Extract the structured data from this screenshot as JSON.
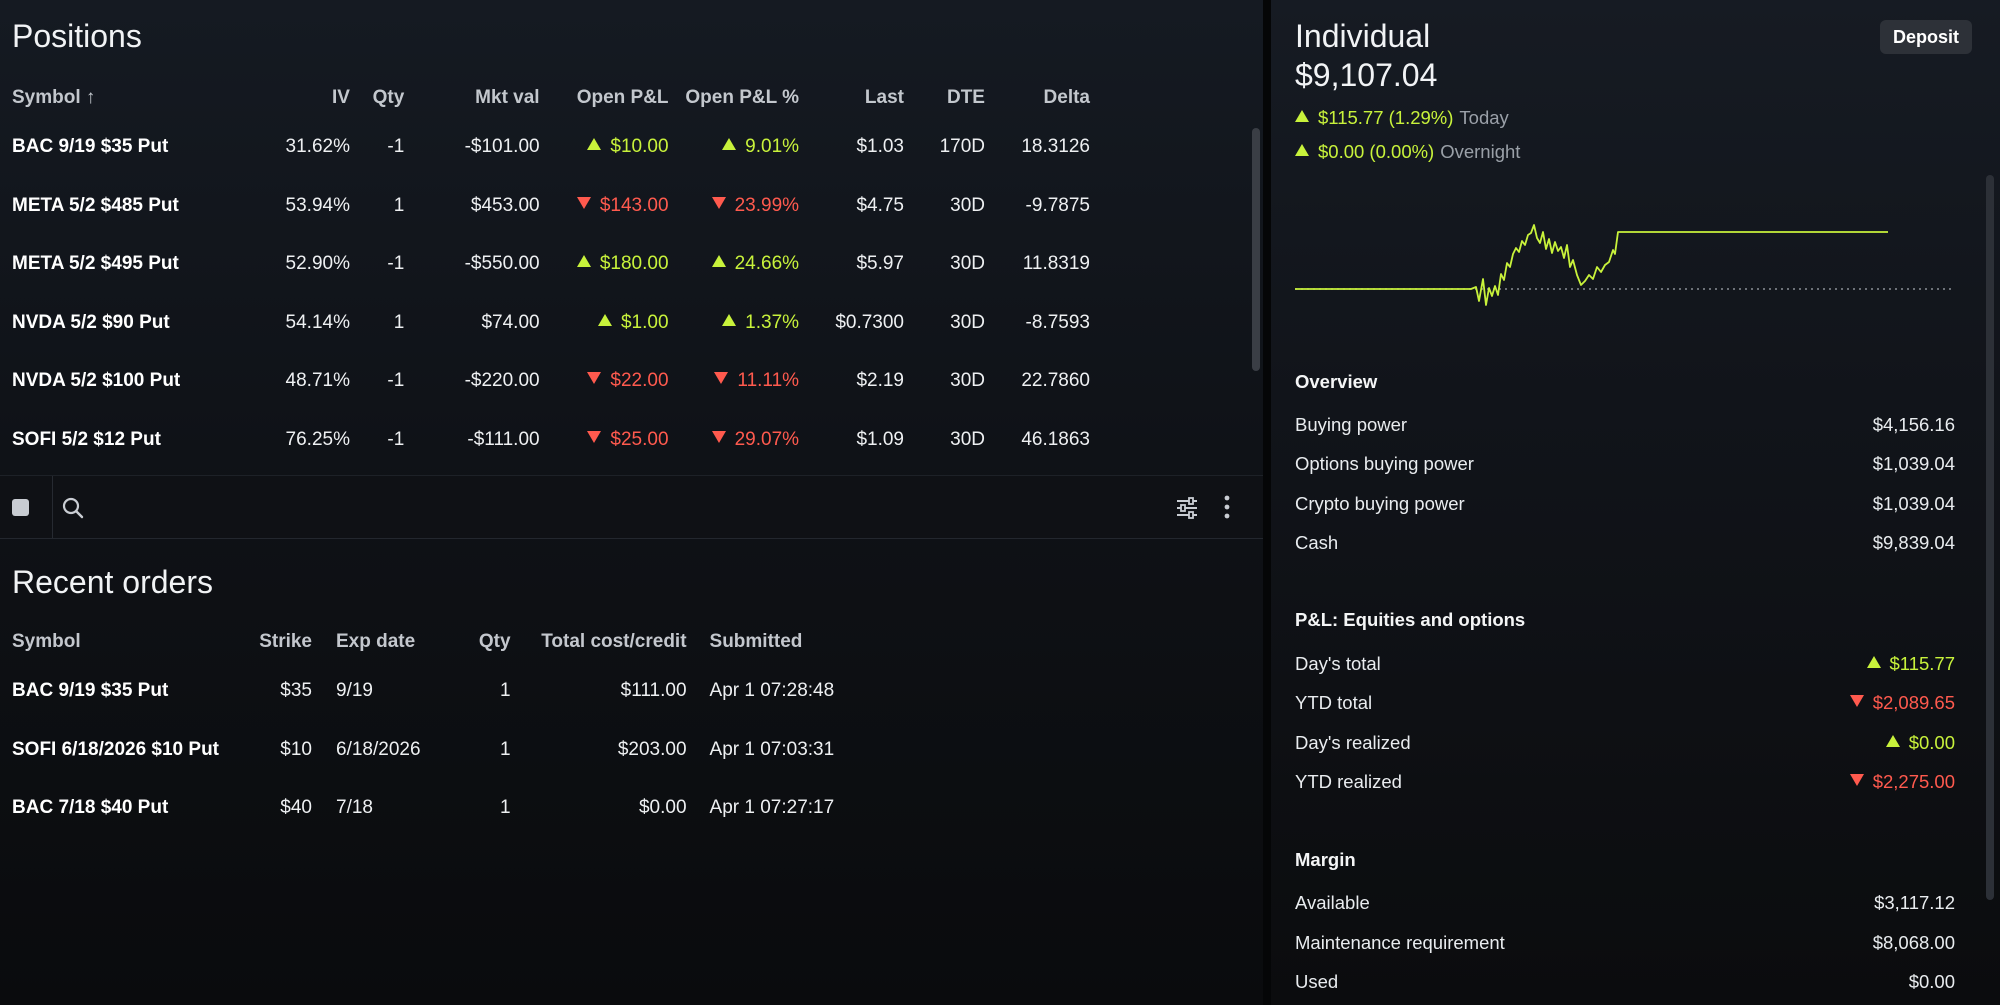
{
  "positions": {
    "title": "Positions",
    "columns": [
      "Symbol ↑",
      "IV",
      "Qty",
      "Mkt val",
      "Open P&L",
      "Open P&L %",
      "Last",
      "DTE",
      "Delta"
    ],
    "rows": [
      {
        "symbol": "BAC 9/19 $35 Put",
        "iv": "31.62%",
        "qty": "-1",
        "mkt": "-$101.00",
        "pnl": "$10.00",
        "pnl_pct": "9.01%",
        "dir": "up",
        "last": "$1.03",
        "dte": "170D",
        "delta": "18.3126"
      },
      {
        "symbol": "META 5/2 $485 Put",
        "iv": "53.94%",
        "qty": "1",
        "mkt": "$453.00",
        "pnl": "$143.00",
        "pnl_pct": "23.99%",
        "dir": "down",
        "last": "$4.75",
        "dte": "30D",
        "delta": "-9.7875"
      },
      {
        "symbol": "META 5/2 $495 Put",
        "iv": "52.90%",
        "qty": "-1",
        "mkt": "-$550.00",
        "pnl": "$180.00",
        "pnl_pct": "24.66%",
        "dir": "up",
        "last": "$5.97",
        "dte": "30D",
        "delta": "11.8319"
      },
      {
        "symbol": "NVDA 5/2 $90 Put",
        "iv": "54.14%",
        "qty": "1",
        "mkt": "$74.00",
        "pnl": "$1.00",
        "pnl_pct": "1.37%",
        "dir": "up",
        "last": "$0.7300",
        "dte": "30D",
        "delta": "-8.7593"
      },
      {
        "symbol": "NVDA 5/2 $100 Put",
        "iv": "48.71%",
        "qty": "-1",
        "mkt": "-$220.00",
        "pnl": "$22.00",
        "pnl_pct": "11.11%",
        "dir": "down",
        "last": "$2.19",
        "dte": "30D",
        "delta": "22.7860"
      },
      {
        "symbol": "SOFI 5/2 $12 Put",
        "iv": "76.25%",
        "qty": "-1",
        "mkt": "-$111.00",
        "pnl": "$25.00",
        "pnl_pct": "29.07%",
        "dir": "down",
        "last": "$1.09",
        "dte": "30D",
        "delta": "46.1863"
      }
    ]
  },
  "toolbar": {
    "icons": [
      "checkbox-icon",
      "search-icon",
      "filter-sliders-icon",
      "more-vertical-icon"
    ]
  },
  "orders": {
    "title": "Recent orders",
    "columns": [
      "Symbol",
      "Strike",
      "Exp date",
      "Qty",
      "Total cost/credit",
      "Submitted"
    ],
    "rows": [
      {
        "symbol": "BAC 9/19 $35 Put",
        "strike": "$35",
        "exp": "9/19",
        "qty": "1",
        "total": "$111.00",
        "submitted": "Apr 1 07:28:48"
      },
      {
        "symbol": "SOFI 6/18/2026 $10 Put",
        "strike": "$10",
        "exp": "6/18/2026",
        "qty": "1",
        "total": "$203.00",
        "submitted": "Apr 1 07:03:31"
      },
      {
        "symbol": "BAC 7/18 $40 Put",
        "strike": "$40",
        "exp": "7/18",
        "qty": "1",
        "total": "$0.00",
        "submitted": "Apr 1 07:27:17"
      }
    ]
  },
  "account": {
    "title": "Individual",
    "value": "$9,107.04",
    "deposit_label": "Deposit",
    "today_change": "$115.77 (1.29%)",
    "today_label": "Today",
    "overnight_change": "$0.00 (0.00%)",
    "overnight_label": "Overnight"
  },
  "overview": {
    "title": "Overview",
    "items": [
      {
        "label": "Buying power",
        "value": "$4,156.16"
      },
      {
        "label": "Options buying power",
        "value": "$1,039.04"
      },
      {
        "label": "Crypto buying power",
        "value": "$1,039.04"
      },
      {
        "label": "Cash",
        "value": "$9,839.04"
      }
    ]
  },
  "pnl": {
    "title": "P&L: Equities and options",
    "items": [
      {
        "label": "Day's total",
        "value": "$115.77",
        "dir": "up"
      },
      {
        "label": "YTD total",
        "value": "$2,089.65",
        "dir": "down"
      },
      {
        "label": "Day's realized",
        "value": "$0.00",
        "dir": "up"
      },
      {
        "label": "YTD realized",
        "value": "$2,275.00",
        "dir": "down"
      }
    ]
  },
  "margin": {
    "title": "Margin",
    "items": [
      {
        "label": "Available",
        "value": "$3,117.12"
      },
      {
        "label": "Maintenance requirement",
        "value": "$8,068.00"
      },
      {
        "label": "Used",
        "value": "$0.00"
      }
    ]
  },
  "colors": {
    "positive": "#c8f23b",
    "negative": "#ff5a4e",
    "background": "#0f1217"
  }
}
